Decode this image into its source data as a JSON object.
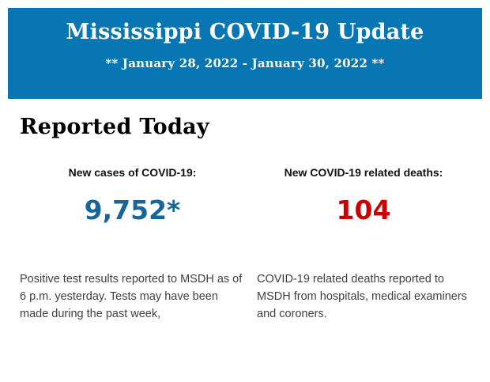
{
  "header": {
    "title": "Mississippi COVID-19 Update",
    "date_range": "** January 28, 2022 - January 30, 2022 **",
    "background_color": "#0776B3",
    "text_color": "#FFFFFF"
  },
  "main": {
    "section_title": "Reported Today",
    "stats": [
      {
        "label": "New cases of COVID-19:",
        "value": "9,752*",
        "value_color": "#17669B",
        "description": "Positive test results reported to MSDH as of 6 p.m. yesterday. Tests may have been made during the past week,"
      },
      {
        "label": "New COVID-19 related deaths:",
        "value": "104",
        "value_color": "#CC0000",
        "description": "COVID-19 related deaths reported to MSDH from hospitals, medical examiners and coroners."
      }
    ]
  }
}
